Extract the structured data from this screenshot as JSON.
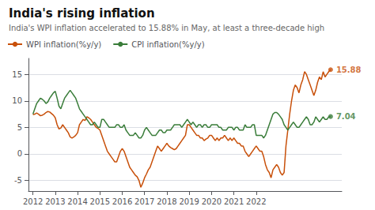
{
  "chart_data": {
    "type": "line",
    "title": "India's rising inflation",
    "subtitle": "India's WPI inflation accelerated to 15.88% in May, at least a three-decade high",
    "x": [
      2012,
      2012.0833333,
      2012.1666667,
      2012.25,
      2012.3333333,
      2012.4166667,
      2012.5,
      2012.5833333,
      2012.6666667,
      2012.75,
      2012.8333333,
      2012.9166667,
      2013,
      2013.0833333,
      2013.1666667,
      2013.25,
      2013.3333333,
      2013.4166667,
      2013.5,
      2013.5833333,
      2013.6666667,
      2013.75,
      2013.8333333,
      2013.9166667,
      2014,
      2014.0833333,
      2014.1666667,
      2014.25,
      2014.3333333,
      2014.4166667,
      2014.5,
      2014.5833333,
      2014.6666667,
      2014.75,
      2014.8333333,
      2014.9166667,
      2015,
      2015.0833333,
      2015.1666667,
      2015.25,
      2015.3333333,
      2015.4166667,
      2015.5,
      2015.5833333,
      2015.6666667,
      2015.75,
      2015.8333333,
      2015.9166667,
      2016,
      2016.0833333,
      2016.1666667,
      2016.25,
      2016.3333333,
      2016.4166667,
      2016.5,
      2016.5833333,
      2016.6666667,
      2016.75,
      2016.8333333,
      2016.9166667,
      2017,
      2017.0833333,
      2017.1666667,
      2017.25,
      2017.3333333,
      2017.4166667,
      2017.5,
      2017.5833333,
      2017.6666667,
      2017.75,
      2017.8333333,
      2017.9166667,
      2018,
      2018.0833333,
      2018.1666667,
      2018.25,
      2018.3333333,
      2018.4166667,
      2018.5,
      2018.5833333,
      2018.6666667,
      2018.75,
      2018.8333333,
      2018.9166667,
      2019,
      2019.0833333,
      2019.1666667,
      2019.25,
      2019.3333333,
      2019.4166667,
      2019.5,
      2019.5833333,
      2019.6666667,
      2019.75,
      2019.8333333,
      2019.9166667,
      2020,
      2020.0833333,
      2020.1666667,
      2020.25,
      2020.3333333,
      2020.4166667,
      2020.5,
      2020.5833333,
      2020.6666667,
      2020.75,
      2020.8333333,
      2020.9166667,
      2021,
      2021.0833333,
      2021.1666667,
      2021.25,
      2021.3333333,
      2021.4166667,
      2021.5,
      2021.5833333,
      2021.6666667,
      2021.75,
      2021.8333333,
      2021.9166667,
      2022,
      2022.0833333,
      2022.1666667,
      2022.25,
      2022.3333333,
      2022.4166667,
      2022.5,
      2022.5833333,
      2022.6666667,
      2022.75,
      2022.8333333,
      2022.9166667,
      2023,
      2023.0833333,
      2023.1666667,
      2023.25,
      2023.3333333,
      2023.4166667,
      2023.5,
      2023.5833333,
      2023.6666667,
      2023.75,
      2023.8333333,
      2023.9166667,
      2024,
      2024.0833333,
      2024.1666667,
      2024.25,
      2024.3333333,
      2024.4166667,
      2024.5,
      2024.5833333,
      2024.6666667,
      2024.75,
      2024.8333333,
      2024.9166667,
      2025,
      2025.0833333,
      2025.1666667,
      2025.25,
      2025.3333333
    ],
    "series": [
      {
        "name": "WPI inflation(%y/y)",
        "color": "#c8500a",
        "values": [
          7.4,
          7.5,
          7.7,
          7.5,
          7.2,
          7.3,
          7.5,
          7.8,
          8.0,
          7.9,
          7.6,
          7.3,
          6.8,
          5.5,
          4.7,
          4.9,
          5.5,
          5.0,
          4.5,
          4.0,
          3.2,
          3.0,
          3.2,
          3.5,
          4.0,
          5.5,
          6.0,
          6.5,
          6.3,
          7.0,
          6.8,
          6.5,
          6.0,
          5.5,
          5.0,
          4.8,
          4.5,
          3.5,
          2.5,
          1.5,
          0.5,
          0.0,
          -0.5,
          -1.0,
          -1.5,
          -1.5,
          -0.5,
          0.5,
          1.0,
          0.5,
          -0.5,
          -1.5,
          -2.5,
          -3.0,
          -3.5,
          -4.0,
          -4.3,
          -5.0,
          -6.3,
          -5.5,
          -4.5,
          -3.8,
          -3.0,
          -2.5,
          -1.5,
          -0.5,
          0.5,
          1.5,
          1.0,
          0.5,
          1.0,
          1.5,
          2.0,
          1.5,
          1.2,
          1.0,
          0.8,
          1.0,
          1.5,
          2.0,
          2.5,
          3.0,
          3.5,
          5.5,
          5.5,
          5.0,
          4.5,
          4.0,
          3.5,
          3.5,
          3.0,
          3.0,
          2.5,
          2.8,
          3.0,
          3.5,
          3.5,
          3.0,
          2.5,
          3.0,
          2.5,
          3.0,
          3.0,
          3.5,
          3.0,
          2.5,
          3.0,
          2.5,
          3.0,
          2.5,
          2.0,
          2.0,
          1.5,
          1.5,
          0.5,
          0.0,
          -0.5,
          0.0,
          0.5,
          1.0,
          1.5,
          1.0,
          0.5,
          0.5,
          -0.5,
          -2.0,
          -3.0,
          -3.5,
          -4.5,
          -3.0,
          -2.5,
          -2.0,
          -2.5,
          -3.5,
          -4.0,
          -3.5,
          1.5,
          4.5,
          7.5,
          10.0,
          12.0,
          13.0,
          12.5,
          11.5,
          13.0,
          14.0,
          15.5,
          15.0,
          14.0,
          13.0,
          12.0,
          11.0,
          12.0,
          13.5,
          14.5,
          14.0,
          15.5,
          14.5,
          15.0,
          15.5,
          15.88
        ]
      },
      {
        "name": "CPI inflation(%y/y)",
        "color": "#3a7d3a",
        "values": [
          7.5,
          8.5,
          9.5,
          10.0,
          10.5,
          10.3,
          10.0,
          9.5,
          9.8,
          10.5,
          11.0,
          11.5,
          11.8,
          10.5,
          9.0,
          8.5,
          9.5,
          10.5,
          11.0,
          11.5,
          12.0,
          11.5,
          11.0,
          10.5,
          9.5,
          8.5,
          8.0,
          7.5,
          7.0,
          6.5,
          6.0,
          5.5,
          5.5,
          6.0,
          5.5,
          5.0,
          5.0,
          6.5,
          6.5,
          6.0,
          5.5,
          5.0,
          5.0,
          5.0,
          5.0,
          5.5,
          5.5,
          5.0,
          5.0,
          5.5,
          4.5,
          4.0,
          3.5,
          3.5,
          3.5,
          4.0,
          3.5,
          3.0,
          3.0,
          3.5,
          4.5,
          5.0,
          4.5,
          4.0,
          3.5,
          3.5,
          3.5,
          4.0,
          4.5,
          4.5,
          4.0,
          4.0,
          4.5,
          4.5,
          4.5,
          5.0,
          5.5,
          5.5,
          5.5,
          5.5,
          5.0,
          5.5,
          6.0,
          6.5,
          6.0,
          5.5,
          6.0,
          5.5,
          5.0,
          5.5,
          5.5,
          5.0,
          5.5,
          5.5,
          5.0,
          5.0,
          5.5,
          5.5,
          5.5,
          5.5,
          5.0,
          5.0,
          4.5,
          4.5,
          4.5,
          5.0,
          5.0,
          5.0,
          4.5,
          5.0,
          5.0,
          4.5,
          4.5,
          4.5,
          5.5,
          5.0,
          5.0,
          5.0,
          5.5,
          5.5,
          3.5,
          3.5,
          3.5,
          3.5,
          3.0,
          3.5,
          4.5,
          5.5,
          6.5,
          7.5,
          7.8,
          7.8,
          7.5,
          7.0,
          6.5,
          5.5,
          5.0,
          4.5,
          5.0,
          5.5,
          6.0,
          5.5,
          5.0,
          5.0,
          5.5,
          6.0,
          6.5,
          7.0,
          6.5,
          5.5,
          5.5,
          6.0,
          7.0,
          6.5,
          6.0,
          6.5,
          7.0,
          6.5,
          6.5,
          7.0,
          7.04
        ]
      }
    ],
    "annotations": [
      {
        "text": "15.88",
        "x": 2025.3333333,
        "y": 15.88,
        "series": "WPI inflation(%y/y)"
      },
      {
        "text": "7.04",
        "x": 2025.3333333,
        "y": 7.04,
        "series": "CPI inflation(%y/y)"
      }
    ],
    "xlim": [
      2011.8,
      2025.8333333
    ],
    "xticks": [
      2012,
      2013,
      2014,
      2015,
      2016,
      2017,
      2018,
      2019,
      2020,
      2021,
      2022
    ],
    "ylim": [
      -7,
      18
    ],
    "yticks": [
      -5,
      0,
      5,
      10,
      15
    ],
    "grid": true,
    "legend": "upper left"
  }
}
